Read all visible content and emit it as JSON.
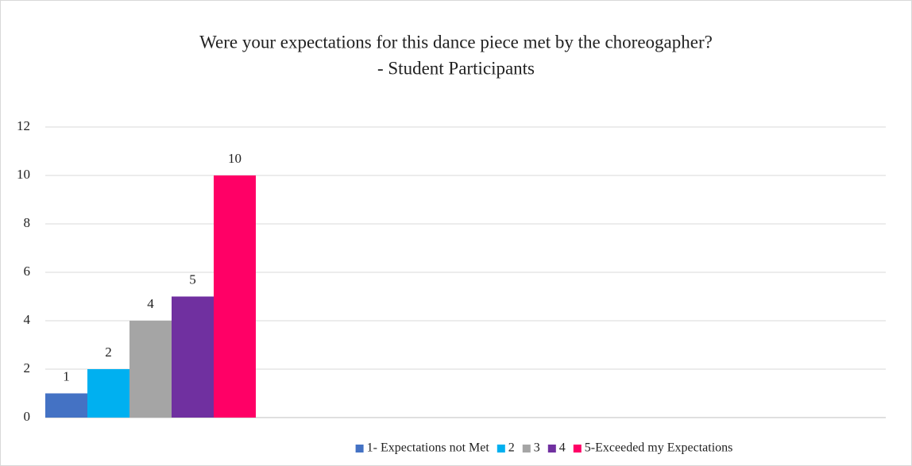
{
  "chart_data": {
    "type": "bar",
    "title": [
      "Were your expectations for this dance piece met by the choreogapher?",
      "- Student Participants"
    ],
    "categories": [
      null
    ],
    "series": [
      {
        "name": "1- Expectations not Met",
        "color": "#4472c4",
        "values": [
          1
        ]
      },
      {
        "name": "2",
        "color": "#00b0f0",
        "values": [
          2
        ]
      },
      {
        "name": "3",
        "color": "#a5a5a5",
        "values": [
          4
        ]
      },
      {
        "name": "4",
        "color": "#7030a0",
        "values": [
          5
        ]
      },
      {
        "name": "5-Exceeded my Expectations",
        "color": "#ff0066",
        "values": [
          10
        ]
      }
    ],
    "ylim": [
      0,
      12
    ],
    "yticks": [
      0,
      2,
      4,
      6,
      8,
      10,
      12
    ],
    "grid": true,
    "legend": "bottom"
  }
}
